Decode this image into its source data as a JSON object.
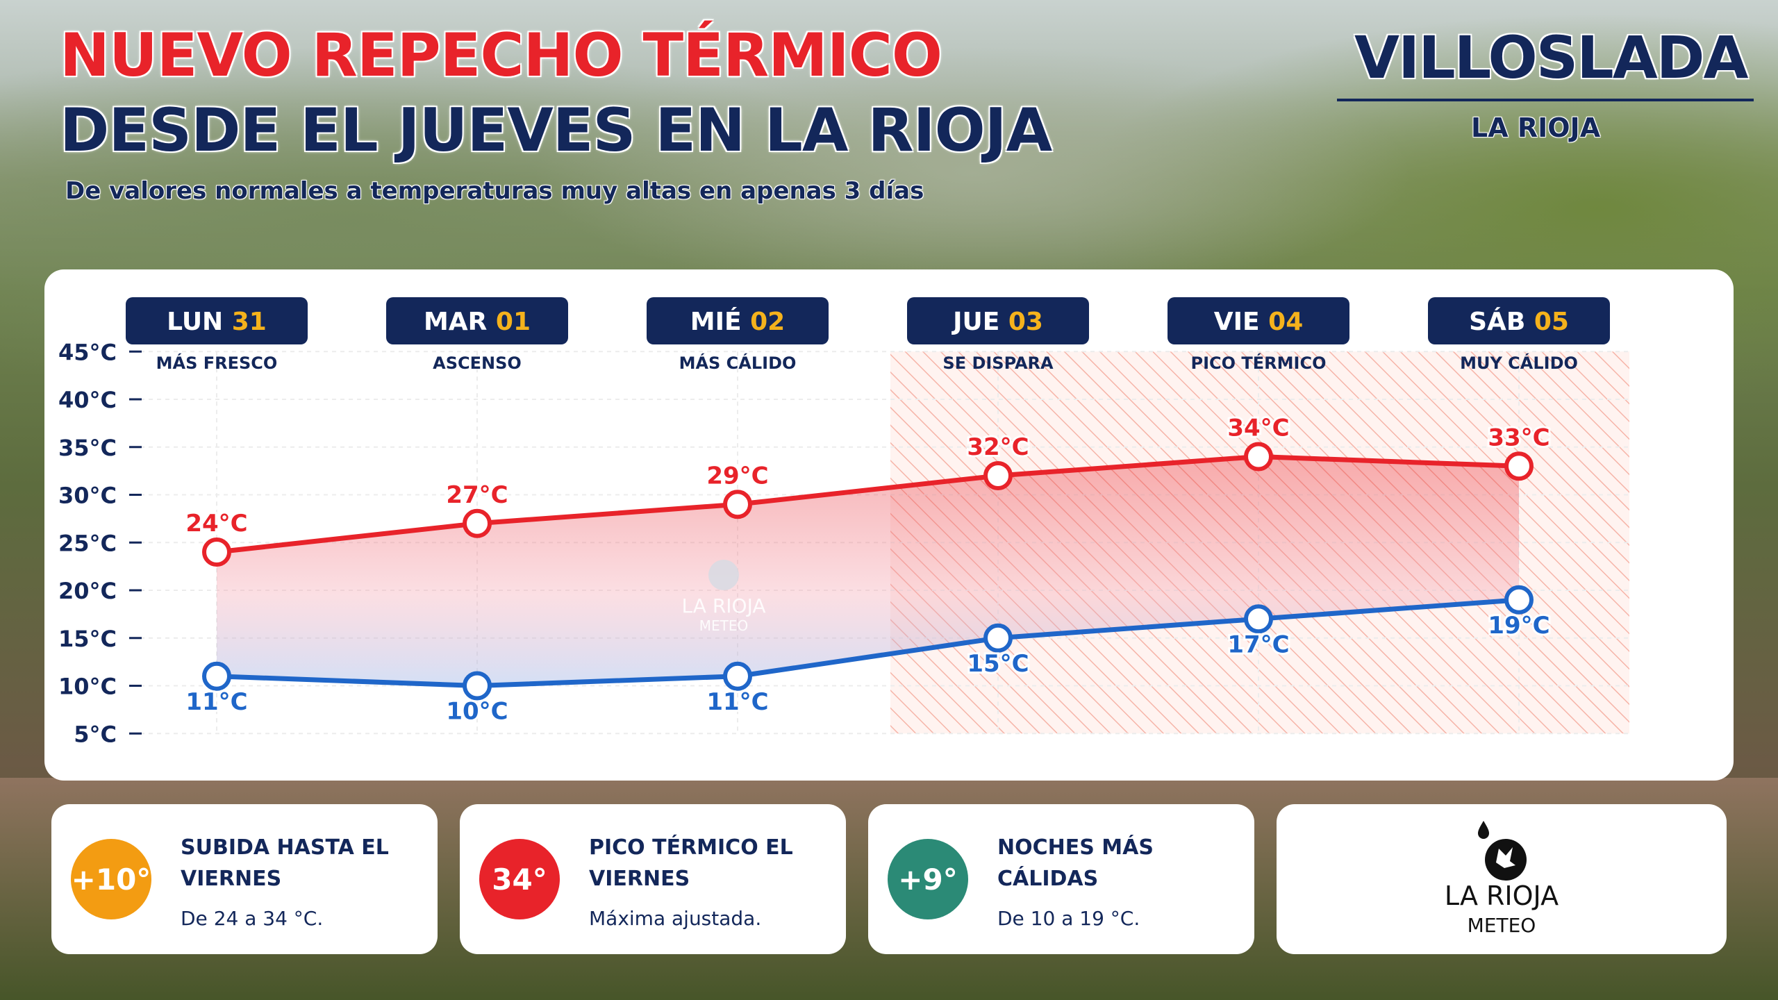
{
  "header": {
    "title_line1": "NUEVO REPECHO TÉRMICO",
    "title_line2": "DESDE EL JUEVES EN LA RIOJA",
    "subtitle": "De valores normales a temperaturas muy altas en apenas 3 días",
    "location": "VILLOSLADA",
    "region": "LA RIOJA"
  },
  "colors": {
    "navy": "#13275a",
    "red": "#e8232a",
    "blue": "#1f66c9",
    "gold": "#f5b21c",
    "orange": "#f39c12",
    "green": "#2b8a76"
  },
  "chart_data": {
    "type": "line",
    "days": [
      {
        "name": "LUN",
        "num": "31",
        "desc": "MÁS FRESCO"
      },
      {
        "name": "MAR",
        "num": "01",
        "desc": "ASCENSO"
      },
      {
        "name": "MIÉ",
        "num": "02",
        "desc": "MÁS CÁLIDO"
      },
      {
        "name": "JUE",
        "num": "03",
        "desc": "SE DISPARA"
      },
      {
        "name": "VIE",
        "num": "04",
        "desc": "PICO TÉRMICO"
      },
      {
        "name": "SÁB",
        "num": "05",
        "desc": "MUY CÁLIDO"
      }
    ],
    "series": [
      {
        "values": [
          24,
          27,
          29,
          32,
          34,
          33
        ],
        "labels": [
          "24°C",
          "27°C",
          "29°C",
          "32°C",
          "34°C",
          "33°C"
        ],
        "color": "#e8232a"
      },
      {
        "values": [
          11,
          10,
          11,
          15,
          17,
          19
        ],
        "labels": [
          "11°C",
          "10°C",
          "11°C",
          "15°C",
          "17°C",
          "19°C"
        ],
        "color": "#1f66c9"
      }
    ],
    "y_ticks": [
      45,
      40,
      35,
      30,
      25,
      20,
      15,
      10,
      5
    ],
    "y_tick_labels": [
      "45°C",
      "40°C",
      "35°C",
      "30°C",
      "25°C",
      "20°C",
      "15°C",
      "10°C",
      "5°C"
    ],
    "ylim": [
      5,
      45
    ],
    "highlight_from_day": 3,
    "grid": true,
    "watermark": {
      "line1": "LA RIOJA",
      "line2": "METEO"
    }
  },
  "cards": [
    {
      "badge": "+10°",
      "title": "SUBIDA HASTA EL VIERNES",
      "desc": "De 24 a 34 °C.",
      "color": "#f39c12"
    },
    {
      "badge": "34°",
      "title": "PICO TÉRMICO EL VIERNES",
      "desc": "Máxima ajustada.",
      "color": "#e8232a"
    },
    {
      "badge": "+9°",
      "title": "NOCHES MÁS CÁLIDAS",
      "desc": "De 10 a 19 °C.",
      "color": "#2b8a76"
    }
  ],
  "logo": {
    "name": "LA RIOJA",
    "sub": "METEO"
  }
}
